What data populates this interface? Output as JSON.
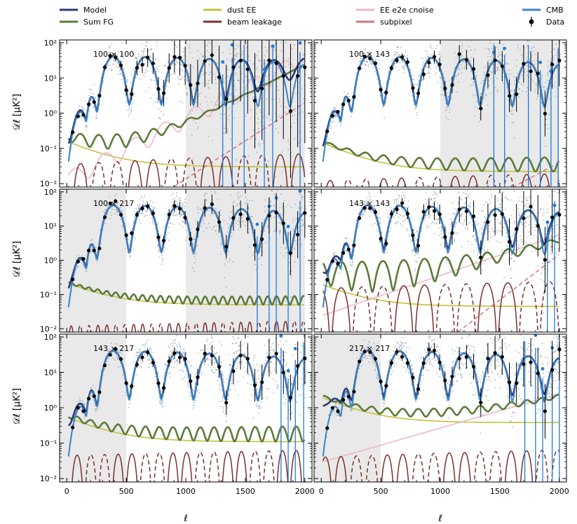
{
  "chart_data": {
    "type": "line",
    "figure": "Multi-panel EE power spectra: model, foregrounds and data",
    "xlabel": "ℓ",
    "ylabel": "𝒟ℓ  [μK²]",
    "xlim": [
      -60,
      2060
    ],
    "xticks": [
      0,
      500,
      1000,
      1500,
      2000
    ],
    "ylim": [
      0.008,
      120
    ],
    "yscale": "log",
    "yticks": [
      0.01,
      0.1,
      1,
      10,
      100
    ],
    "ytick_labels": [
      "10⁻²",
      "10⁻¹",
      "10⁰",
      "10¹",
      "10²"
    ],
    "legend": [
      {
        "label": "Model",
        "color": "#2c3b7a",
        "style": "solid"
      },
      {
        "label": "Sum FG",
        "color": "#5d7a3a",
        "style": "solid"
      },
      {
        "label": "dust EE",
        "color": "#c4c13a",
        "style": "solid"
      },
      {
        "label": "beam leakage",
        "color": "#7c2e2e",
        "style": "solid"
      },
      {
        "label": "EE e2e cnoise",
        "color": "#f0b5cc",
        "style": "solid"
      },
      {
        "label": "subpixel",
        "color": "#d4737f",
        "style": "solid"
      },
      {
        "label": "CMB",
        "color": "#3a86c8",
        "style": "solid"
      },
      {
        "label": "Data",
        "color": "#000000",
        "style": "errorbar"
      }
    ],
    "colors": {
      "model": "#2c3b7a",
      "sumfg": "#5d7a3a",
      "dust": "#c4c13a",
      "beam": "#7c2e2e",
      "cnoise": "#f0b5cc",
      "subpixel": "#d4737f",
      "cmb": "#3a86c8",
      "data": "#000000",
      "negdata": "#1f7ae0",
      "scatter": "#8ea0b0",
      "shade": "#e9e9e9"
    },
    "panels": [
      {
        "label": "100 × 100",
        "masks": [
          [
            1000,
            2000
          ]
        ],
        "dust": {
          "a": 0.16,
          "b": 0.03
        },
        "beam": {
          "amp": 0.035,
          "period": 305,
          "phase": 40,
          "grow": 0.5
        },
        "cnoise": {
          "start": 0.015,
          "end": 40,
          "wiggle": true
        },
        "subpixel": {
          "from": 800,
          "start": 0.005,
          "end": 2.0
        },
        "fg_boost": 1.2,
        "scale_hi": 3.0,
        "neg": [
          1310,
          1390,
          1490,
          1660,
          1730,
          1960
        ]
      },
      {
        "label": "100 × 143",
        "masks": [
          [
            1000,
            2000
          ]
        ],
        "dust": {
          "a": 0.15,
          "b": 0.022
        },
        "beam": {
          "amp": 0.012,
          "period": 300,
          "phase": 0,
          "grow": 0.3
        },
        "cnoise": null,
        "subpixel": {
          "from": 1500,
          "start": 0.005,
          "end": 0.04
        },
        "fg_boost": 0.6,
        "scale_hi": 1.0,
        "neg": [
          1450,
          1540,
          1740,
          1840,
          1930,
          1990
        ]
      },
      {
        "label": "100 × 217",
        "masks": [
          [
            -60,
            500
          ],
          [
            1000,
            2000
          ]
        ],
        "dust": {
          "a": 0.22,
          "b": 0.05
        },
        "beam": {
          "amp": 0.012,
          "period": 150,
          "phase": 0,
          "grow": 0.2
        },
        "cnoise": null,
        "subpixel": null,
        "fg_boost": 0.8,
        "scale_hi": 1.0,
        "neg": [
          1600,
          1700,
          1760,
          1860,
          1960
        ]
      },
      {
        "label": "143 × 143",
        "masks": [],
        "dust": {
          "a": 0.2,
          "b": 0.045
        },
        "beam": {
          "amp": 0.15,
          "period": 350,
          "phase": 80,
          "grow": 0.3
        },
        "cnoise": {
          "start": 0.025,
          "end": 5.5,
          "wiggle": false
        },
        "subpixel": {
          "from": 1100,
          "start": 0.006,
          "end": 1.5
        },
        "fg_boost": 1.6,
        "scale_hi": 1.5,
        "neg": [
          1900,
          1960
        ]
      },
      {
        "label": "143 × 217",
        "masks": [
          [
            -60,
            500
          ]
        ],
        "dust": {
          "a": 0.55,
          "b": 0.11
        },
        "beam": {
          "amp": 0.045,
          "period": 230,
          "phase": 30,
          "grow": 0.2
        },
        "cnoise": null,
        "subpixel": null,
        "fg_boost": 1.0,
        "scale_hi": 1.0,
        "neg": [
          1800,
          1860,
          1920,
          1990
        ]
      },
      {
        "label": "217 × 217",
        "masks": [
          [
            -60,
            500
          ]
        ],
        "dust": {
          "a": 2.0,
          "b": 0.38
        },
        "beam": {
          "amp": 0.04,
          "period": 260,
          "phase": 100,
          "grow": 0.3
        },
        "cnoise": {
          "start": 0.03,
          "end": 2.5,
          "wiggle": false
        },
        "subpixel": null,
        "fg_boost": 2.5,
        "scale_hi": 1.2,
        "neg": [
          1710,
          1800,
          1860,
          1940,
          2000
        ]
      }
    ]
  }
}
